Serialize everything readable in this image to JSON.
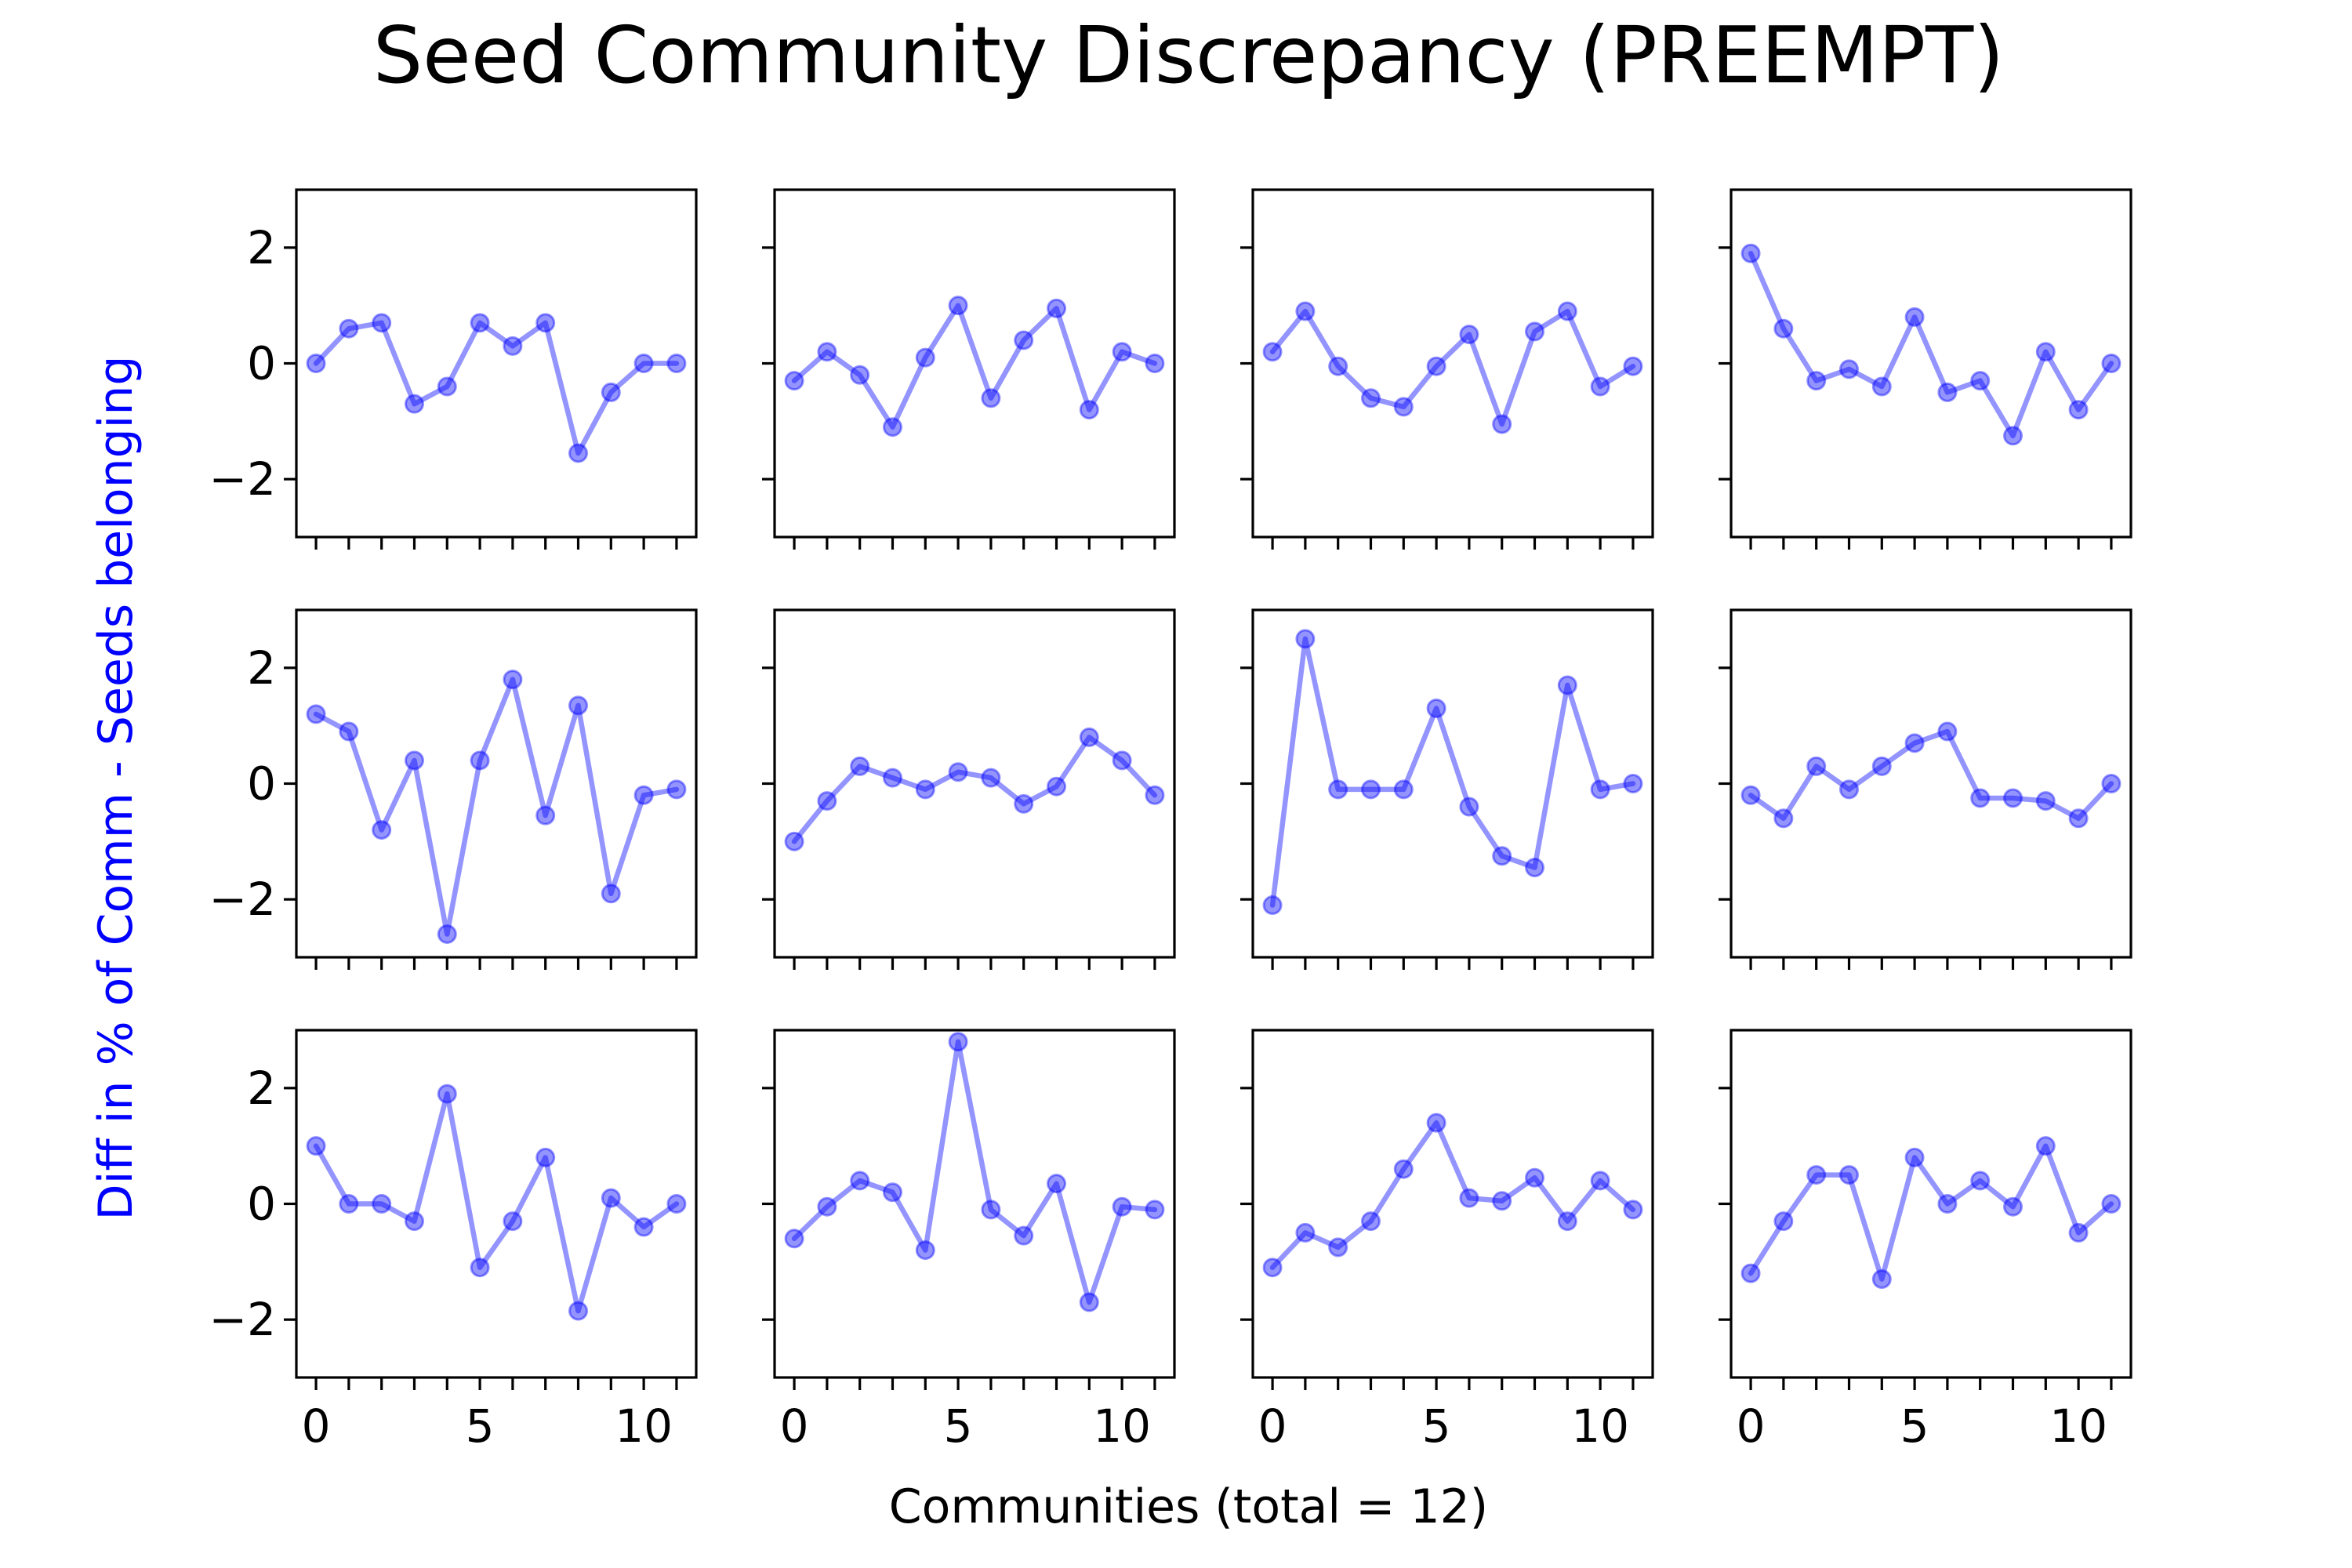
{
  "chart_data": {
    "type": "line",
    "title": "Seed Community Discrepancy (PREEMPT)",
    "xlabel": "Communities (total = 12)",
    "ylabel_parts": [
      "Diff in % of Comm - ",
      "Seeds belonging"
    ],
    "ylabel_colors": [
      "#0000ff",
      "#0000ff"
    ],
    "series_color": "#0000ff",
    "x": [
      0,
      1,
      2,
      3,
      4,
      5,
      6,
      7,
      8,
      9,
      10,
      11
    ],
    "xlim": [
      -0.6,
      11.6
    ],
    "ylim": [
      -3,
      3
    ],
    "xticks": [
      0,
      5,
      10
    ],
    "yticks": [
      -2,
      0,
      2
    ],
    "grid": false,
    "layout": "3x4",
    "panels": [
      {
        "values": [
          0.0,
          0.6,
          0.7,
          -0.7,
          -0.4,
          0.7,
          0.3,
          0.7,
          -1.55,
          -0.5,
          0.0,
          0.0
        ]
      },
      {
        "values": [
          -0.3,
          0.2,
          -0.2,
          -1.1,
          0.1,
          1.0,
          -0.6,
          0.4,
          0.95,
          -0.8,
          0.2,
          0.0
        ]
      },
      {
        "values": [
          0.2,
          0.9,
          -0.05,
          -0.6,
          -0.75,
          -0.05,
          0.5,
          -1.05,
          0.55,
          0.9,
          -0.4,
          -0.05
        ]
      },
      {
        "values": [
          1.9,
          0.6,
          -0.3,
          -0.1,
          -0.4,
          0.8,
          -0.5,
          -0.3,
          -1.25,
          0.2,
          -0.8,
          0.0
        ]
      },
      {
        "values": [
          1.2,
          0.9,
          -0.8,
          0.4,
          -2.6,
          0.4,
          1.8,
          -0.55,
          1.35,
          -1.9,
          -0.2,
          -0.1
        ]
      },
      {
        "values": [
          -1.0,
          -0.3,
          0.3,
          0.1,
          -0.1,
          0.2,
          0.1,
          -0.35,
          -0.05,
          0.8,
          0.4,
          -0.2
        ]
      },
      {
        "values": [
          -2.1,
          2.5,
          -0.1,
          -0.1,
          -0.1,
          1.3,
          -0.4,
          -1.25,
          -1.45,
          1.7,
          -0.1,
          0.0
        ]
      },
      {
        "values": [
          -0.2,
          -0.6,
          0.3,
          -0.1,
          0.3,
          0.7,
          0.9,
          -0.25,
          -0.25,
          -0.3,
          -0.6,
          0.0
        ]
      },
      {
        "values": [
          1.0,
          0.0,
          0.0,
          -0.3,
          1.9,
          -1.1,
          -0.3,
          0.8,
          -1.85,
          0.1,
          -0.4,
          0.0
        ]
      },
      {
        "values": [
          -0.6,
          -0.05,
          0.4,
          0.2,
          -0.8,
          2.8,
          -0.1,
          -0.55,
          0.35,
          -1.7,
          -0.05,
          -0.1
        ]
      },
      {
        "values": [
          -1.1,
          -0.5,
          -0.75,
          -0.3,
          0.6,
          1.4,
          0.1,
          0.05,
          0.45,
          -0.3,
          0.4,
          -0.1
        ]
      },
      {
        "values": [
          -1.2,
          -0.3,
          0.5,
          0.5,
          -1.3,
          0.8,
          0.0,
          0.4,
          -0.05,
          1.0,
          -0.5,
          0.0
        ]
      }
    ]
  }
}
